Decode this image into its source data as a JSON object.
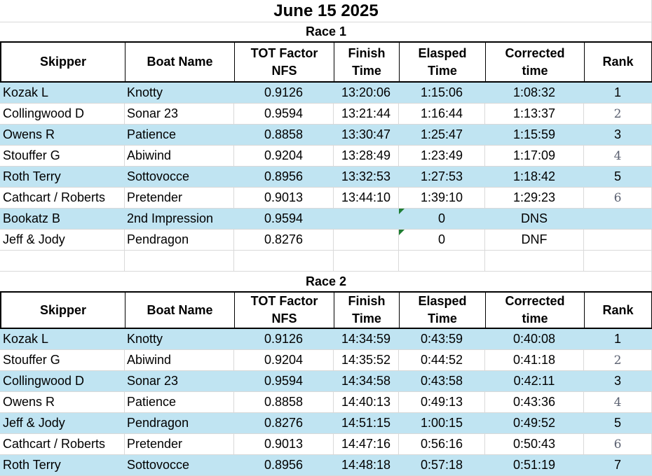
{
  "title": "June 15 2025",
  "columns": [
    "Skipper",
    "Boat Name",
    "TOT Factor NFS",
    "Finish Time",
    "Elasped Time",
    "Corrected time",
    "Rank"
  ],
  "columns_lines": [
    [
      "Skipper"
    ],
    [
      "Boat Name"
    ],
    [
      "TOT Factor",
      "NFS"
    ],
    [
      "Finish",
      "Time"
    ],
    [
      "Elasped",
      "Time"
    ],
    [
      "Corrected",
      "time"
    ],
    [
      "Rank"
    ]
  ],
  "race1": {
    "title": "Race 1",
    "rows": [
      {
        "skipper": "Kozak L",
        "boat": "Knotty",
        "tot": "0.9126",
        "finish": "13:20:06",
        "elapsed": "1:15:06",
        "corrected": "1:08:32",
        "rank": "1"
      },
      {
        "skipper": "Collingwood D",
        "boat": "Sonar 23",
        "tot": "0.9594",
        "finish": "13:21:44",
        "elapsed": "1:16:44",
        "corrected": "1:13:37",
        "rank": "2"
      },
      {
        "skipper": "Owens R",
        "boat": "Patience",
        "tot": "0.8858",
        "finish": "13:30:47",
        "elapsed": "1:25:47",
        "corrected": "1:15:59",
        "rank": "3"
      },
      {
        "skipper": "Stouffer  G",
        "boat": "Abiwind",
        "tot": "0.9204",
        "finish": "13:28:49",
        "elapsed": "1:23:49",
        "corrected": "1:17:09",
        "rank": "4"
      },
      {
        "skipper": "Roth Terry",
        "boat": "Sottovocce",
        "tot": "0.8956",
        "finish": "13:32:53",
        "elapsed": "1:27:53",
        "corrected": "1:18:42",
        "rank": "5"
      },
      {
        "skipper": "Cathcart / Roberts",
        "boat": "Pretender",
        "tot": "0.9013",
        "finish": "13:44:10",
        "elapsed": "1:39:10",
        "corrected": "1:29:23",
        "rank": "6"
      },
      {
        "skipper": "Bookatz B",
        "boat": "2nd Impression",
        "tot": "0.9594",
        "finish": "",
        "elapsed": "0",
        "corrected": "DNS",
        "rank": ""
      },
      {
        "skipper": "Jeff & Jody",
        "boat": "Pendragon",
        "tot": "0.8276",
        "finish": "",
        "elapsed": "0",
        "corrected": "DNF",
        "rank": ""
      }
    ]
  },
  "race2": {
    "title": "Race 2",
    "rows": [
      {
        "skipper": "Kozak L",
        "boat": "Knotty",
        "tot": "0.9126",
        "finish": "14:34:59",
        "elapsed": "0:43:59",
        "corrected": "0:40:08",
        "rank": "1"
      },
      {
        "skipper": "Stouffer  G",
        "boat": "Abiwind",
        "tot": "0.9204",
        "finish": "14:35:52",
        "elapsed": "0:44:52",
        "corrected": "0:41:18",
        "rank": "2"
      },
      {
        "skipper": "Collingwood D",
        "boat": "Sonar 23",
        "tot": "0.9594",
        "finish": "14:34:58",
        "elapsed": "0:43:58",
        "corrected": "0:42:11",
        "rank": "3"
      },
      {
        "skipper": "Owens R",
        "boat": "Patience",
        "tot": "0.8858",
        "finish": "14:40:13",
        "elapsed": "0:49:13",
        "corrected": "0:43:36",
        "rank": "4"
      },
      {
        "skipper": "Jeff & Jody",
        "boat": "Pendragon",
        "tot": "0.8276",
        "finish": "14:51:15",
        "elapsed": "1:00:15",
        "corrected": "0:49:52",
        "rank": "5"
      },
      {
        "skipper": "Cathcart / Roberts",
        "boat": "Pretender",
        "tot": "0.9013",
        "finish": "14:47:16",
        "elapsed": "0:56:16",
        "corrected": "0:50:43",
        "rank": "6"
      },
      {
        "skipper": "Roth Terry",
        "boat": "Sottovocce",
        "tot": "0.8956",
        "finish": "14:48:18",
        "elapsed": "0:57:18",
        "corrected": "0:51:19",
        "rank": "7"
      }
    ]
  },
  "colors": {
    "band": "#c0e4f2",
    "gridline": "#d9d9d9",
    "comment_marker": "#1e7d32"
  }
}
